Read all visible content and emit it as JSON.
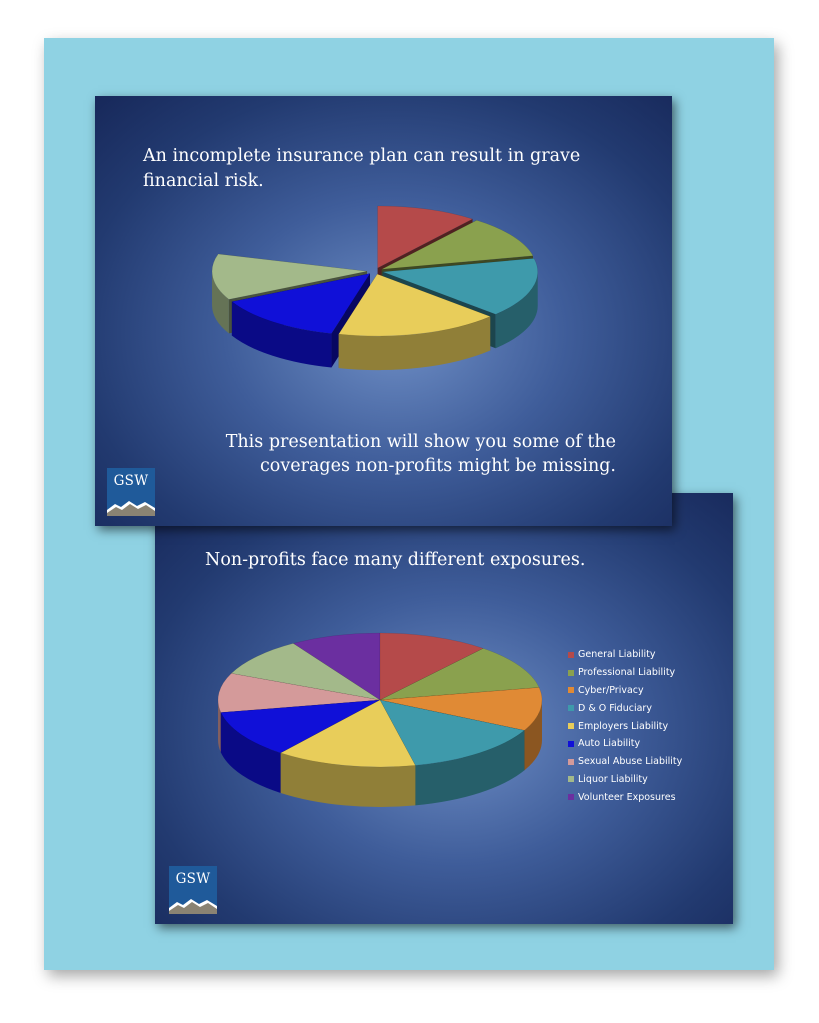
{
  "slide1": {
    "title": "An incomplete insurance plan can result in grave financial risk.",
    "subtitle_line1": "This presentation will show you some of the",
    "subtitle_line2": "coverages non-profits might be missing.",
    "logo_text": "GSW"
  },
  "slide2": {
    "title": "Non-profits face many different exposures.",
    "logo_text": "GSW"
  },
  "chart_data": [
    {
      "type": "pie",
      "title": "",
      "exploded": true,
      "three_d": true,
      "start_angle_deg": -90,
      "slices": [
        {
          "value": 10.5,
          "color": "#b54a4a"
        },
        {
          "value": 11,
          "color": "#8aa14e"
        },
        {
          "value": 0.01,
          "color": "#2f4f8f"
        },
        {
          "value": 15.5,
          "color": "#3e9aab"
        },
        {
          "value": 17,
          "color": "#e8cd5a"
        },
        {
          "value": 13.5,
          "color": "#1010d8"
        },
        {
          "value": 0.01,
          "color": "#2f4f8f"
        },
        {
          "value": 12,
          "color": "#a3b98a"
        },
        {
          "value": 20.5,
          "color": "#2f4f8f",
          "hidden": true
        }
      ]
    },
    {
      "type": "pie",
      "title": "",
      "three_d": true,
      "start_angle_deg": -90,
      "legend_position": "right",
      "slices": [
        {
          "name": "General Liability",
          "value": 11,
          "color": "#b54a4a"
        },
        {
          "name": "Professional Liability",
          "value": 11,
          "color": "#8aa14e"
        },
        {
          "name": "Cyber/Privacy",
          "value": 10.5,
          "color": "#e08a35"
        },
        {
          "name": "D & O Fiduciary",
          "value": 14,
          "color": "#3e9aab"
        },
        {
          "name": "Employers Liability",
          "value": 14,
          "color": "#e8cd5a"
        },
        {
          "name": "Auto Liability",
          "value": 11.5,
          "color": "#1010d8"
        },
        {
          "name": "Sexual Abuse Liability",
          "value": 9.5,
          "color": "#d49a9a"
        },
        {
          "name": "Liquor Liability",
          "value": 9.5,
          "color": "#a3b98a"
        },
        {
          "name": "Volunteer Exposures",
          "value": 9,
          "color": "#6b2fa0"
        }
      ]
    }
  ]
}
